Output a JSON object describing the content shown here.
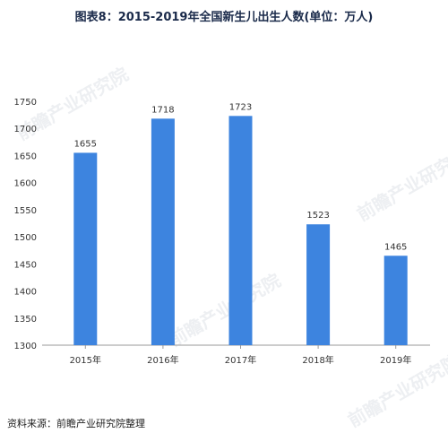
{
  "title": "图表8：2015-2019年全国新生儿出生人数(单位：万人)",
  "source": "资料来源：前瞻产业研究院整理",
  "watermark_text": "前瞻产业研究院",
  "colors": {
    "bar": "#3d84df",
    "grid": "#dddddd",
    "axis": "#999999",
    "text": "#333333"
  },
  "chart_data": {
    "type": "bar",
    "title": "图表8：2015-2019年全国新生儿出生人数(单位：万人)",
    "categories": [
      "2015年",
      "2016年",
      "2017年",
      "2018年",
      "2019年"
    ],
    "values": [
      1655,
      1718,
      1723,
      1523,
      1465
    ],
    "ylim": [
      1300,
      1750
    ],
    "yticks": [
      1300,
      1350,
      1400,
      1450,
      1500,
      1550,
      1600,
      1650,
      1700,
      1750
    ],
    "grid": false,
    "data_labels": true
  }
}
